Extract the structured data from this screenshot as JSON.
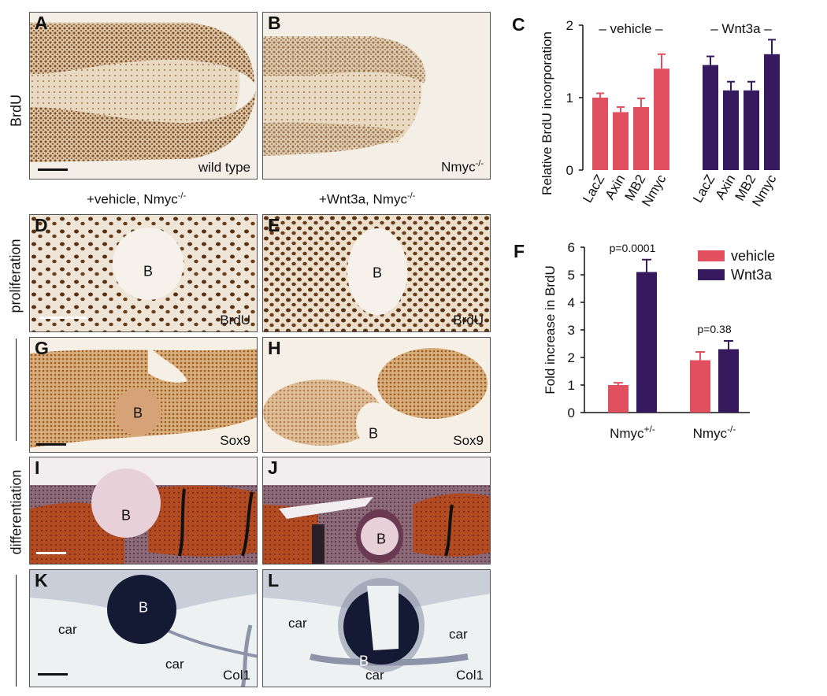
{
  "panel_letters": {
    "A": "A",
    "B": "B",
    "C": "C",
    "D": "D",
    "E": "E",
    "F": "F",
    "G": "G",
    "H": "H",
    "I": "I",
    "J": "J",
    "K": "K",
    "L": "L"
  },
  "row_labels": {
    "brdu": "BrdU",
    "proliferation": "proliferation",
    "differentiation": "differentiation"
  },
  "headers": {
    "vehicle_prefix": "+vehicle, Nmyc",
    "wnt_prefix": "+Wnt3a, Nmyc",
    "sup": "-/-"
  },
  "corner_labels": {
    "A": "wild type",
    "B_base": "Nmyc",
    "B_sup": "-/-",
    "D": "BrdU",
    "E": "BrdU",
    "G": "Sox9",
    "H": "Sox9",
    "K": "Col1",
    "L": "Col1"
  },
  "bead_label": "B",
  "car_label": "car",
  "colors": {
    "vehicle": "#e0505f",
    "wnt3a": "#37195e",
    "brdu_stain": "#7a4a20",
    "sox9_stain": "#b5773a",
    "hist_red": "#b04020",
    "col1": "#1a1f3a"
  },
  "chart_data": [
    {
      "id": "C",
      "type": "bar",
      "ylabel": "Relative BrdU incorporation",
      "ylim": [
        0,
        2
      ],
      "yticks": [
        "0",
        "1",
        "2"
      ],
      "groups": [
        {
          "name": "vehicle",
          "bracket_label": "– vehicle –",
          "color": "#e0505f",
          "categories": [
            "LacZ",
            "Axin",
            "MB2",
            "Nmyc"
          ],
          "values": [
            1.0,
            0.8,
            0.87,
            1.4
          ],
          "errors": [
            0.06,
            0.07,
            0.12,
            0.2
          ]
        },
        {
          "name": "Wnt3a",
          "bracket_label": "– Wnt3a –",
          "color": "#37195e",
          "categories": [
            "LacZ",
            "Axin",
            "MB2",
            "Nmyc"
          ],
          "values": [
            1.45,
            1.1,
            1.1,
            1.6
          ],
          "errors": [
            0.12,
            0.12,
            0.12,
            0.2
          ]
        }
      ],
      "grid": false
    },
    {
      "id": "F",
      "type": "bar",
      "ylabel": "Fold increase in BrdU",
      "ylim": [
        0,
        6
      ],
      "yticks": [
        "0",
        "1",
        "2",
        "3",
        "4",
        "5",
        "6"
      ],
      "categories": [
        {
          "base": "Nmyc",
          "sup": "+/-"
        },
        {
          "base": "Nmyc",
          "sup": "-/-"
        }
      ],
      "series": [
        {
          "name": "vehicle",
          "color": "#e0505f",
          "values": [
            1.0,
            1.9
          ],
          "errors": [
            0.08,
            0.3
          ]
        },
        {
          "name": "Wnt3a",
          "color": "#37195e",
          "values": [
            5.1,
            2.3
          ],
          "errors": [
            0.45,
            0.3
          ]
        }
      ],
      "annotations": [
        "p=0.0001",
        "p=0.38"
      ],
      "legend": "top-right",
      "grid": false
    }
  ]
}
